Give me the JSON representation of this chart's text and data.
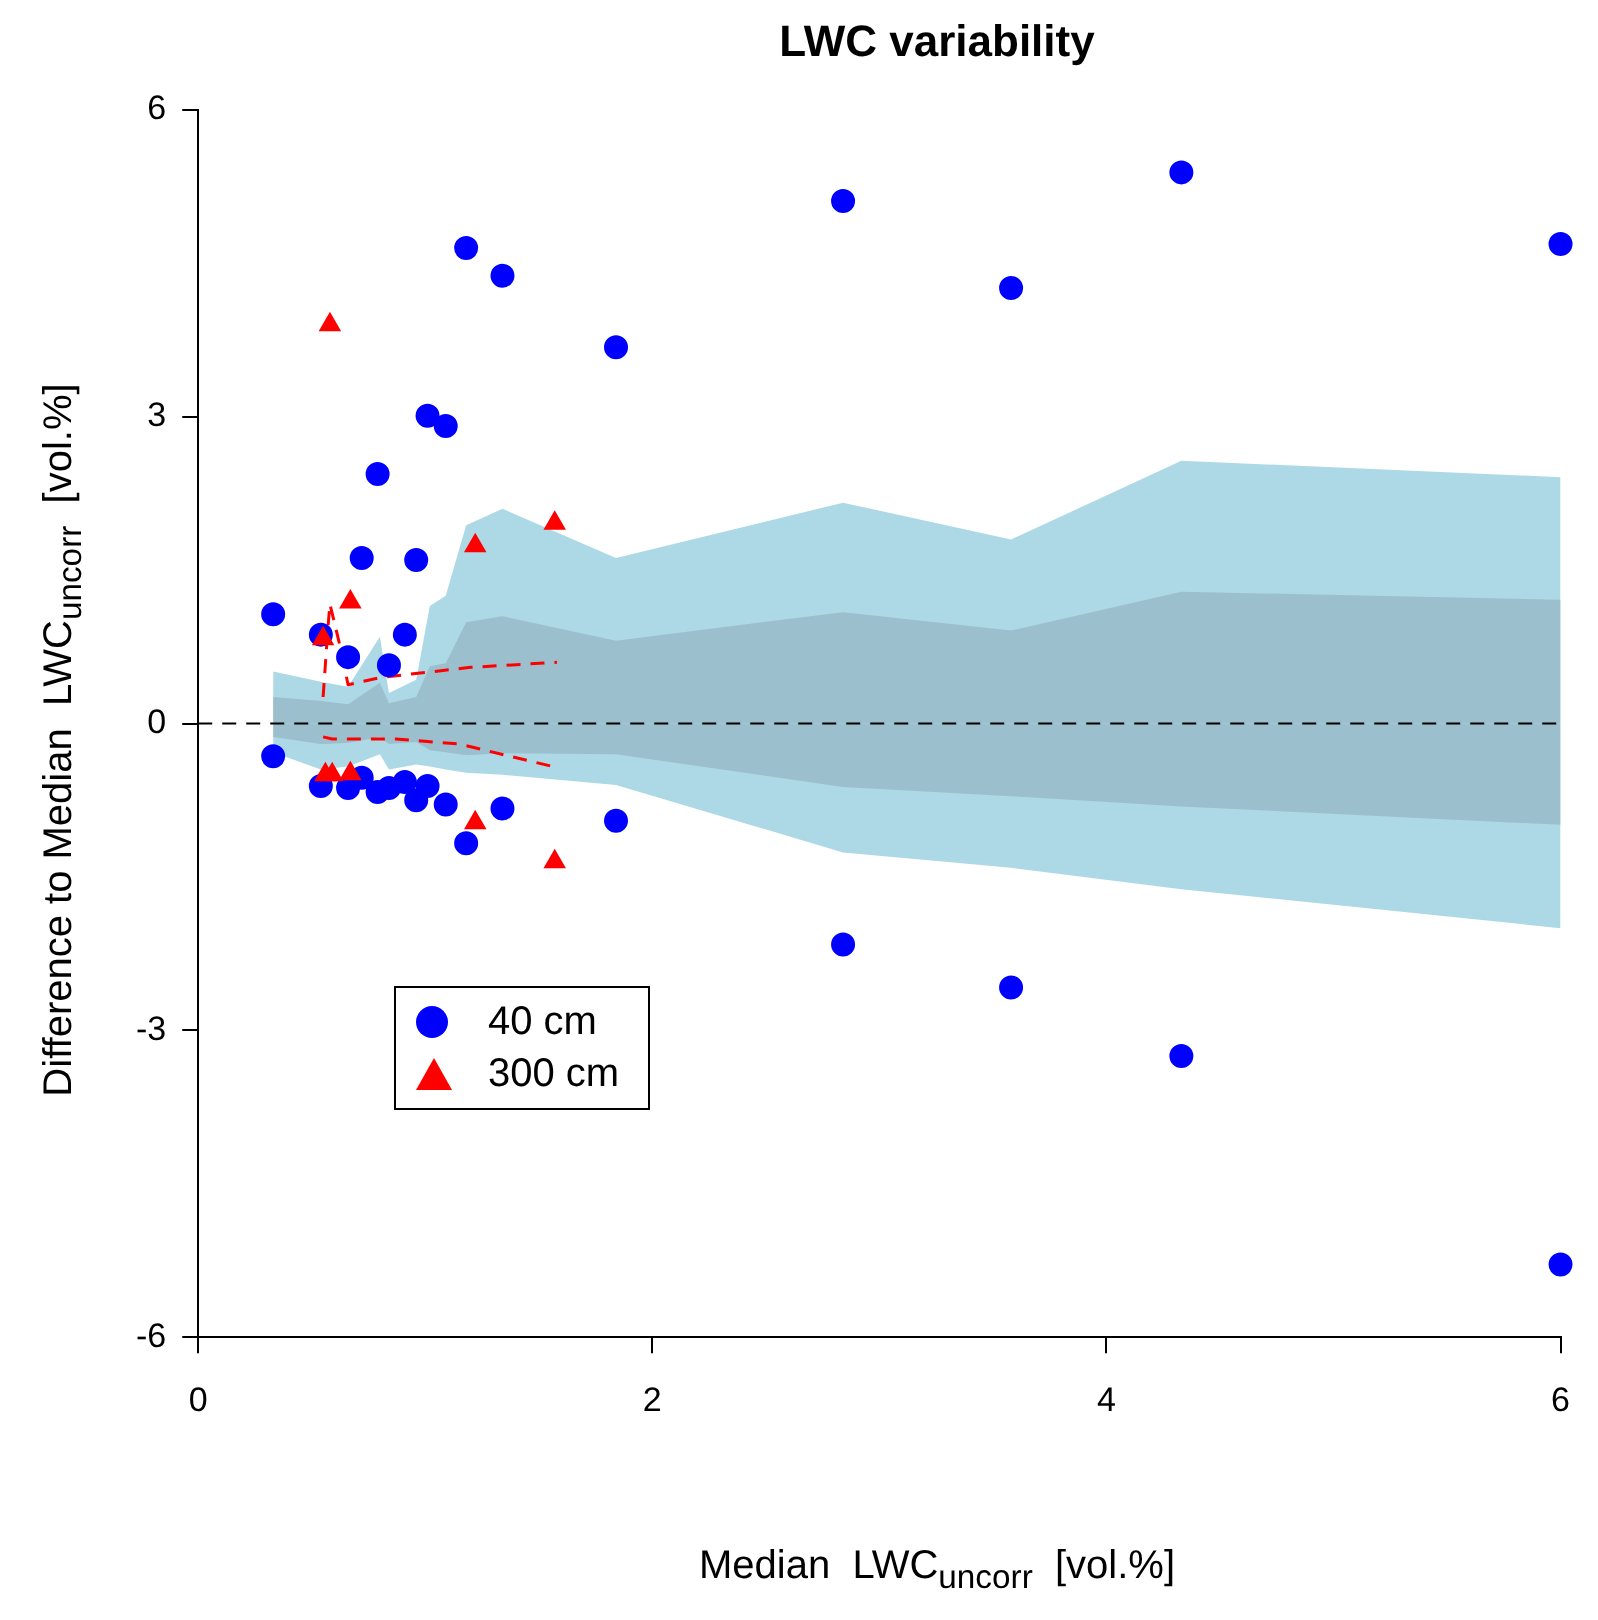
{
  "chart_data": {
    "type": "scatter",
    "title": "LWC variability",
    "xlabel": "Median  LWC$_{uncorr}$  [vol.%]",
    "ylabel": "Difference to Median  LWC$_{uncorr}$  [vol.%]",
    "xlim": [
      0,
      6
    ],
    "ylim": [
      -6,
      6
    ],
    "xticks": [
      0,
      2,
      4,
      6
    ],
    "yticks": [
      -6,
      -3,
      0,
      3,
      6
    ],
    "grid": false,
    "legend": "bottom left",
    "ref_lines": [
      {
        "axis": "y",
        "value": 0,
        "color": "#000000",
        "line_style": "dashed"
      }
    ],
    "series": [
      {
        "type": "area",
        "color": "#add8e6",
        "x": [
          0.33,
          0.54,
          0.66,
          0.8,
          0.84,
          0.96,
          1.02,
          1.09,
          1.18,
          1.34,
          1.84,
          2.84,
          3.58,
          4.33,
          6.0
        ],
        "values": [
          0.51,
          0.41,
          0.36,
          0.85,
          0.3,
          0.43,
          1.15,
          1.25,
          1.94,
          2.1,
          1.62,
          2.16,
          1.8,
          2.57,
          2.41
        ]
      },
      {
        "type": "area",
        "color": "#add8e6",
        "x": [
          0.33,
          0.54,
          0.66,
          0.8,
          0.84,
          0.96,
          1.02,
          1.09,
          1.18,
          1.34,
          1.84,
          2.84,
          3.58,
          4.33,
          6.0
        ],
        "values": [
          -0.28,
          -0.45,
          -0.42,
          -0.3,
          -0.45,
          -0.4,
          -0.42,
          -0.45,
          -0.48,
          -0.5,
          -0.6,
          -1.26,
          -1.41,
          -1.62,
          -2.0
        ]
      },
      {
        "type": "area",
        "color": "#9bbfcd",
        "x": [
          0.33,
          0.54,
          0.66,
          0.8,
          0.84,
          0.96,
          1.02,
          1.09,
          1.18,
          1.34,
          1.84,
          2.84,
          3.58,
          4.33,
          6.0
        ],
        "values": [
          -0.13,
          -0.2,
          -0.19,
          -0.13,
          -0.2,
          -0.18,
          -0.26,
          -0.28,
          -0.31,
          -0.29,
          -0.3,
          -0.62,
          -0.71,
          -0.81,
          -0.99
        ]
      },
      {
        "type": "area",
        "color": "#9bbfcd",
        "x": [
          0.33,
          0.54,
          0.66,
          0.8,
          0.84,
          0.96,
          1.02,
          1.09,
          1.18,
          1.34,
          1.84,
          2.84,
          3.58,
          4.33,
          6.0
        ],
        "values": [
          0.26,
          0.22,
          0.19,
          0.4,
          0.2,
          0.26,
          0.56,
          0.59,
          0.99,
          1.05,
          0.81,
          1.09,
          0.91,
          1.29,
          1.21
        ]
      },
      {
        "type": "line",
        "color": "#ff0000",
        "line_style": "dashed",
        "x": [
          0.55,
          0.57,
          0.58,
          0.62,
          0.66,
          0.8,
          1.0,
          1.2,
          1.58
        ],
        "values": [
          0.26,
          0.9,
          1.17,
          0.8,
          0.38,
          0.45,
          0.5,
          0.55,
          0.6
        ]
      },
      {
        "type": "line",
        "color": "#ff0000",
        "line_style": "dashed",
        "x": [
          0.55,
          0.59,
          0.87,
          1.15,
          1.58
        ],
        "values": [
          -0.13,
          -0.15,
          -0.15,
          -0.2,
          -0.43
        ]
      },
      {
        "name": "40 cm",
        "color": "#0000ff",
        "marker": "circle",
        "x": [
          0.33,
          0.33,
          0.54,
          0.54,
          0.66,
          0.66,
          0.72,
          0.72,
          0.79,
          0.79,
          0.84,
          0.84,
          0.91,
          0.91,
          0.96,
          0.96,
          1.01,
          1.01,
          1.09,
          1.09,
          1.18,
          1.18,
          1.34,
          1.34,
          1.84,
          1.84,
          2.84,
          2.84,
          3.58,
          3.58,
          4.33,
          4.33,
          6.0,
          6.0
        ],
        "values": [
          1.07,
          -0.32,
          0.87,
          -0.61,
          0.65,
          -0.63,
          1.62,
          -0.53,
          2.44,
          -0.67,
          0.57,
          -0.63,
          0.87,
          -0.57,
          1.6,
          -0.75,
          3.01,
          -0.61,
          2.91,
          -0.79,
          4.65,
          -1.17,
          4.38,
          -0.83,
          3.68,
          -0.95,
          5.11,
          -2.16,
          4.26,
          -2.58,
          5.39,
          -3.25,
          4.69,
          -5.29
        ]
      },
      {
        "name": "300 cm",
        "color": "#ff0000",
        "marker": "triangle",
        "x": [
          0.58,
          0.55,
          0.67,
          1.22,
          1.57,
          0.56,
          0.59,
          0.67,
          1.22,
          1.57
        ],
        "values": [
          3.9,
          0.83,
          1.19,
          1.74,
          1.96,
          -0.5,
          -0.5,
          -0.49,
          -0.97,
          -1.35
        ]
      }
    ]
  }
}
